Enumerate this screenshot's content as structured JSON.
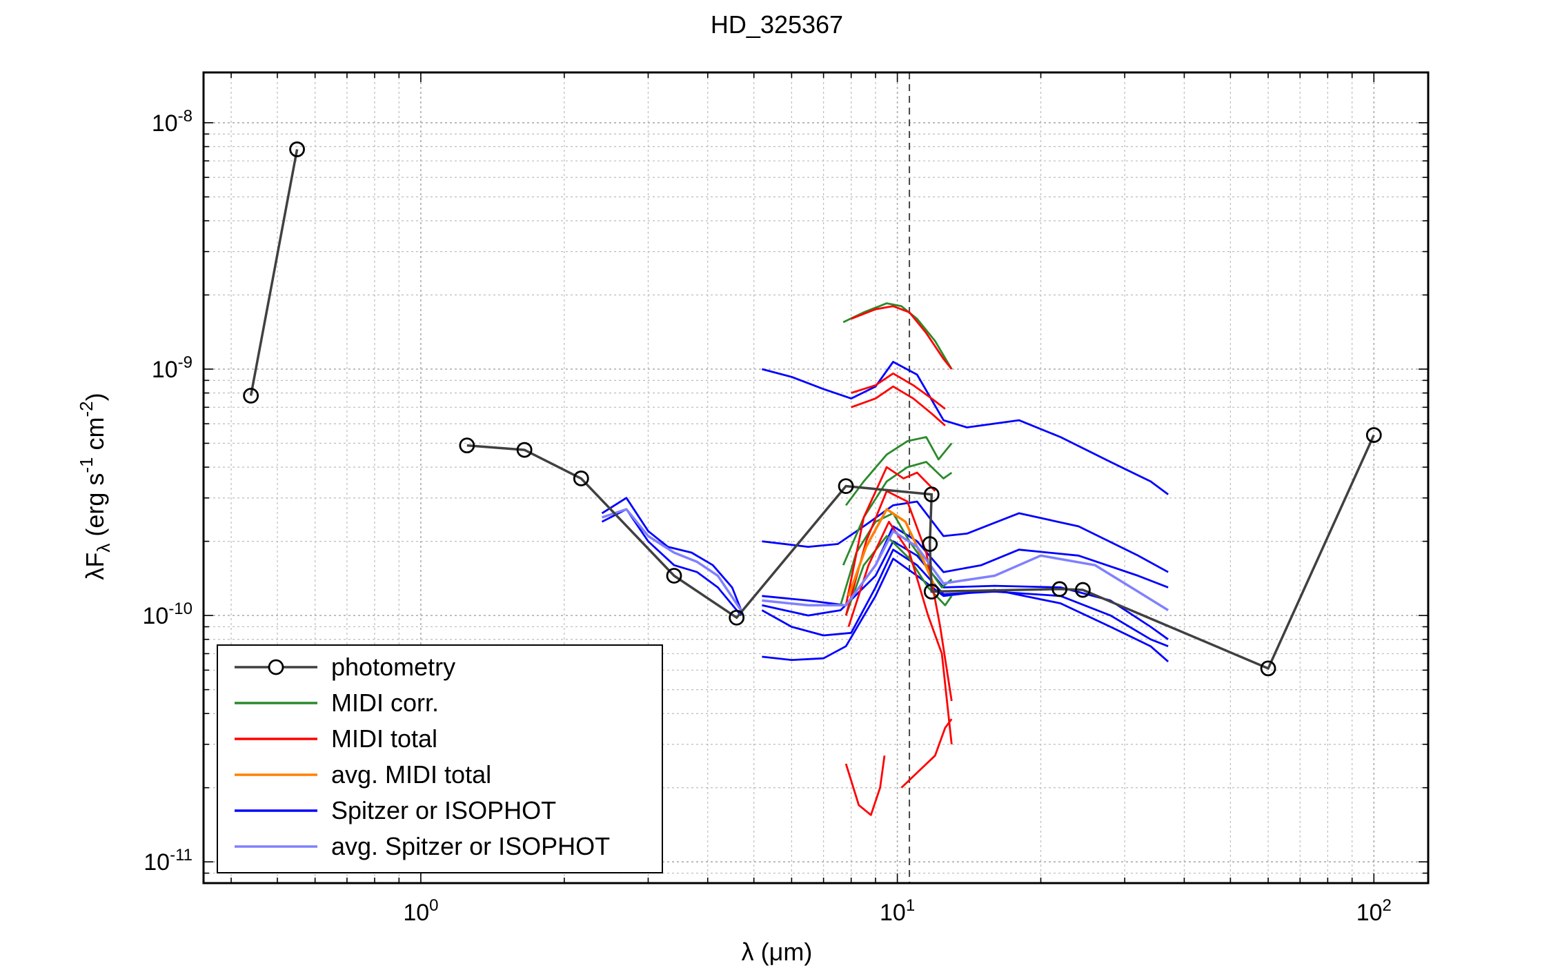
{
  "chart_data": {
    "type": "line",
    "title": "HD_325367",
    "xlabel": {
      "prefix": "λ (",
      "mu": "μ",
      "suffix": "m)"
    },
    "ylabel": {
      "lambda": "λ",
      "F": "F",
      "sub": "λ",
      "open": " (erg s",
      "exp1": "-1",
      "mid": " cm",
      "exp2": "-2",
      "close": ")"
    },
    "x_scale": "log",
    "y_scale": "log",
    "xlim": [
      0.35,
      130
    ],
    "ylim": [
      8.2e-12,
      1.6e-08
    ],
    "x_ticks": [
      {
        "value": 1,
        "base": "10",
        "exp": "0"
      },
      {
        "value": 10,
        "base": "10",
        "exp": "1"
      },
      {
        "value": 100,
        "base": "10",
        "exp": "2"
      }
    ],
    "y_ticks": [
      {
        "value": 1e-11,
        "base": "10",
        "exp": "-11"
      },
      {
        "value": 1e-10,
        "base": "10",
        "exp": "-10"
      },
      {
        "value": 1e-09,
        "base": "10",
        "exp": "-9"
      },
      {
        "value": 1e-08,
        "base": "10",
        "exp": "-8"
      }
    ],
    "grid": true,
    "vline_x": 10.6,
    "legend_position": "lower-left",
    "colors": {
      "photometry": "#404040",
      "midi_corr": "#2a8a2a",
      "midi_total": "#ff0000",
      "avg_midi_total": "#ff8000",
      "spitzer": "#0000ff",
      "avg_spitzer": "#8080ff"
    },
    "series": [
      {
        "name": "photometry",
        "kind": "photometry",
        "color": "#404040",
        "segments": [
          [
            [
              0.44,
              7.8e-10
            ],
            [
              0.55,
              7.8e-09
            ]
          ],
          [
            [
              1.25,
              4.9e-10
            ],
            [
              1.65,
              4.7e-10
            ],
            [
              2.17,
              3.6e-10
            ],
            [
              3.4,
              1.45e-10
            ],
            [
              4.6,
              9.8e-11
            ],
            [
              7.8,
              3.35e-10
            ],
            [
              11.8,
              3.1e-10
            ],
            [
              11.7,
              1.95e-10
            ],
            [
              11.8,
              1.25e-10
            ],
            [
              21.9,
              1.28e-10
            ],
            [
              24.5,
              1.27e-10
            ],
            [
              60,
              6.1e-11
            ],
            [
              100,
              5.4e-10
            ]
          ]
        ]
      },
      {
        "name": "MIDI corr.",
        "kind": "midi_corr",
        "color": "#2a8a2a",
        "lines": [
          [
            [
              7.7,
              1.55e-09
            ],
            [
              8.5,
              1.7e-09
            ],
            [
              9.5,
              1.85e-09
            ],
            [
              10.2,
              1.8e-09
            ],
            [
              11.0,
              1.6e-09
            ],
            [
              12.0,
              1.3e-09
            ],
            [
              13.0,
              1e-09
            ]
          ],
          [
            [
              7.8,
              2.8e-10
            ],
            [
              8.5,
              3.5e-10
            ],
            [
              9.5,
              4.5e-10
            ],
            [
              10.5,
              5.1e-10
            ],
            [
              11.5,
              5.3e-10
            ],
            [
              12.2,
              4.3e-10
            ],
            [
              13.0,
              5e-10
            ]
          ],
          [
            [
              7.7,
              1.6e-10
            ],
            [
              8.5,
              2.5e-10
            ],
            [
              9.5,
              3.5e-10
            ],
            [
              10.5,
              4e-10
            ],
            [
              11.5,
              4.2e-10
            ],
            [
              12.5,
              3.6e-10
            ],
            [
              13.0,
              3.8e-10
            ]
          ],
          [
            [
              7.6,
              1.1e-10
            ],
            [
              8.2,
              1.8e-10
            ],
            [
              9.0,
              2.4e-10
            ],
            [
              9.8,
              2.6e-10
            ],
            [
              10.6,
              2e-10
            ],
            [
              11.5,
              1.6e-10
            ],
            [
              12.4,
              1.3e-10
            ],
            [
              13.0,
              1.4e-10
            ]
          ],
          [
            [
              7.8,
              1e-10
            ],
            [
              8.5,
              1.6e-10
            ],
            [
              9.5,
              2.1e-10
            ],
            [
              10.6,
              1.7e-10
            ],
            [
              11.6,
              1.3e-10
            ],
            [
              12.6,
              1.1e-10
            ],
            [
              13.0,
              1.2e-10
            ]
          ]
        ]
      },
      {
        "name": "MIDI total",
        "kind": "midi_total",
        "color": "#ff0000",
        "lines": [
          [
            [
              8.0,
              1.6e-09
            ],
            [
              9.0,
              1.75e-09
            ],
            [
              9.8,
              1.8e-09
            ],
            [
              10.6,
              1.7e-09
            ],
            [
              11.5,
              1.4e-09
            ],
            [
              12.5,
              1.1e-09
            ],
            [
              13.0,
              1e-09
            ]
          ],
          [
            [
              8.0,
              8e-10
            ],
            [
              9.0,
              8.6e-10
            ],
            [
              9.8,
              9.6e-10
            ],
            [
              10.8,
              8.6e-10
            ],
            [
              11.8,
              7.6e-10
            ],
            [
              12.6,
              6.9e-10
            ]
          ],
          [
            [
              8.0,
              7e-10
            ],
            [
              9.0,
              7.6e-10
            ],
            [
              9.8,
              8.5e-10
            ],
            [
              10.8,
              7.6e-10
            ],
            [
              11.8,
              6.6e-10
            ],
            [
              12.6,
              5.9e-10
            ]
          ],
          [
            [
              7.8,
              1.1e-10
            ],
            [
              8.5,
              2.5e-10
            ],
            [
              9.5,
              4e-10
            ],
            [
              10.3,
              3.6e-10
            ],
            [
              11.0,
              3.8e-10
            ],
            [
              12.0,
              3.2e-10
            ]
          ],
          [
            [
              7.8,
              1e-10
            ],
            [
              8.6,
              2e-10
            ],
            [
              9.5,
              3.2e-10
            ],
            [
              10.5,
              2.9e-10
            ],
            [
              11.5,
              1.8e-10
            ],
            [
              12.3,
              9e-11
            ],
            [
              13.0,
              4.5e-11
            ]
          ],
          [
            [
              7.9,
              9e-11
            ],
            [
              8.7,
              1.6e-10
            ],
            [
              9.6,
              2.4e-10
            ],
            [
              10.6,
              1.8e-10
            ],
            [
              11.6,
              1e-10
            ],
            [
              12.4,
              7e-11
            ],
            [
              13.0,
              3e-11
            ]
          ],
          [
            [
              7.8,
              2.5e-11
            ],
            [
              8.3,
              1.7e-11
            ],
            [
              8.8,
              1.55e-11
            ],
            [
              9.2,
              2e-11
            ],
            [
              9.4,
              2.7e-11
            ]
          ],
          [
            [
              10.2,
              2e-11
            ],
            [
              11.0,
              2.3e-11
            ],
            [
              12.0,
              2.7e-11
            ],
            [
              12.6,
              3.5e-11
            ],
            [
              13.0,
              3.8e-11
            ]
          ]
        ]
      },
      {
        "name": "avg. MIDI total",
        "kind": "avg_midi_total",
        "color": "#ff8000",
        "lines": [
          [
            [
              7.9,
              1.2e-10
            ],
            [
              8.6,
              1.9e-10
            ],
            [
              9.5,
              2.7e-10
            ],
            [
              10.4,
              2.4e-10
            ],
            [
              11.3,
              1.7e-10
            ],
            [
              12.0,
              1.3e-10
            ]
          ]
        ]
      },
      {
        "name": "Spitzer or ISOPHOT",
        "kind": "spitzer",
        "color": "#0000ff",
        "lines": [
          [
            [
              2.4,
              2.6e-10
            ],
            [
              2.7,
              3e-10
            ],
            [
              3.0,
              2.2e-10
            ],
            [
              3.3,
              1.9e-10
            ],
            [
              3.7,
              1.8e-10
            ],
            [
              4.1,
              1.6e-10
            ],
            [
              4.5,
              1.3e-10
            ],
            [
              4.75,
              1e-10
            ]
          ],
          [
            [
              2.4,
              2.4e-10
            ],
            [
              2.7,
              2.7e-10
            ],
            [
              3.0,
              2e-10
            ],
            [
              3.4,
              1.6e-10
            ],
            [
              3.8,
              1.5e-10
            ],
            [
              4.2,
              1.3e-10
            ],
            [
              4.7,
              1e-10
            ]
          ],
          [
            [
              5.2,
              1e-09
            ],
            [
              6.0,
              9.3e-10
            ],
            [
              7.0,
              8.3e-10
            ],
            [
              8.0,
              7.6e-10
            ],
            [
              9.0,
              8.5e-10
            ],
            [
              9.8,
              1.07e-09
            ],
            [
              11.0,
              9.5e-10
            ],
            [
              12.5,
              6.2e-10
            ],
            [
              14.0,
              5.8e-10
            ],
            [
              18.0,
              6.2e-10
            ],
            [
              22.0,
              5.3e-10
            ],
            [
              28.0,
              4.2e-10
            ],
            [
              34.0,
              3.5e-10
            ],
            [
              37.0,
              3.1e-10
            ]
          ],
          [
            [
              5.2,
              2e-10
            ],
            [
              6.5,
              1.9e-10
            ],
            [
              7.5,
              1.95e-10
            ],
            [
              8.5,
              2.3e-10
            ],
            [
              9.8,
              2.8e-10
            ],
            [
              11.0,
              2.9e-10
            ],
            [
              12.5,
              2.1e-10
            ],
            [
              14.0,
              2.15e-10
            ],
            [
              18.0,
              2.6e-10
            ],
            [
              24.0,
              2.3e-10
            ],
            [
              32.0,
              1.75e-10
            ],
            [
              37.0,
              1.5e-10
            ]
          ],
          [
            [
              5.2,
              1.2e-10
            ],
            [
              6.5,
              1.15e-10
            ],
            [
              7.8,
              1.1e-10
            ],
            [
              9.0,
              1.6e-10
            ],
            [
              9.8,
              2.3e-10
            ],
            [
              11.0,
              2e-10
            ],
            [
              12.5,
              1.5e-10
            ],
            [
              15.0,
              1.6e-10
            ],
            [
              18.0,
              1.85e-10
            ],
            [
              24.0,
              1.75e-10
            ],
            [
              32.0,
              1.45e-10
            ],
            [
              37.0,
              1.3e-10
            ]
          ],
          [
            [
              5.2,
              1.1e-10
            ],
            [
              6.5,
              1e-10
            ],
            [
              7.6,
              1.05e-10
            ],
            [
              9.0,
              1.45e-10
            ],
            [
              9.8,
              2e-10
            ],
            [
              11.0,
              1.75e-10
            ],
            [
              12.5,
              1.3e-10
            ],
            [
              16.0,
              1.32e-10
            ],
            [
              22.0,
              1.3e-10
            ],
            [
              28.0,
              1.15e-10
            ],
            [
              34.0,
              9e-11
            ],
            [
              37.0,
              8e-11
            ]
          ],
          [
            [
              5.2,
              1.05e-10
            ],
            [
              6.0,
              9e-11
            ],
            [
              7.0,
              8.3e-11
            ],
            [
              8.0,
              8.5e-11
            ],
            [
              9.0,
              1.3e-10
            ],
            [
              9.8,
              1.85e-10
            ],
            [
              11.0,
              1.6e-10
            ],
            [
              12.5,
              1.22e-10
            ],
            [
              16.0,
              1.25e-10
            ],
            [
              22.0,
              1.2e-10
            ],
            [
              28.0,
              1e-10
            ],
            [
              34.0,
              8e-11
            ],
            [
              37.0,
              7.5e-11
            ]
          ],
          [
            [
              5.2,
              6.8e-11
            ],
            [
              6.0,
              6.6e-11
            ],
            [
              7.0,
              6.7e-11
            ],
            [
              7.8,
              7.5e-11
            ],
            [
              9.0,
              1.2e-10
            ],
            [
              9.8,
              1.7e-10
            ],
            [
              11.0,
              1.45e-10
            ],
            [
              12.5,
              1.2e-10
            ],
            [
              16.0,
              1.27e-10
            ],
            [
              22.0,
              1.12e-10
            ],
            [
              28.0,
              9e-11
            ],
            [
              34.0,
              7.5e-11
            ],
            [
              37.0,
              6.5e-11
            ]
          ]
        ]
      },
      {
        "name": "avg. Spitzer or ISOPHOT",
        "kind": "avg_spitzer",
        "color": "#8080ff",
        "lines": [
          [
            [
              2.4,
              2.5e-10
            ],
            [
              2.7,
              2.7e-10
            ],
            [
              3.0,
              2.1e-10
            ],
            [
              3.4,
              1.8e-10
            ],
            [
              3.8,
              1.65e-10
            ],
            [
              4.2,
              1.45e-10
            ],
            [
              4.7,
              1.05e-10
            ]
          ],
          [
            [
              5.2,
              1.15e-10
            ],
            [
              6.5,
              1.1e-10
            ],
            [
              7.8,
              1.1e-10
            ],
            [
              9.0,
              1.6e-10
            ],
            [
              9.8,
              2.2e-10
            ],
            [
              11.0,
              1.9e-10
            ],
            [
              12.5,
              1.35e-10
            ],
            [
              16.0,
              1.45e-10
            ],
            [
              20.0,
              1.75e-10
            ],
            [
              26.0,
              1.6e-10
            ],
            [
              32.0,
              1.25e-10
            ],
            [
              37.0,
              1.05e-10
            ]
          ]
        ]
      }
    ],
    "legend": [
      {
        "label": "photometry",
        "kind": "photometry",
        "color": "#404040"
      },
      {
        "label": "MIDI corr.",
        "kind": "midi_corr",
        "color": "#2a8a2a"
      },
      {
        "label": "MIDI total",
        "kind": "midi_total",
        "color": "#ff0000"
      },
      {
        "label": "avg. MIDI total",
        "kind": "avg_midi_total",
        "color": "#ff8000"
      },
      {
        "label": "Spitzer or ISOPHOT",
        "kind": "spitzer",
        "color": "#0000ff"
      },
      {
        "label": "avg. Spitzer or ISOPHOT",
        "kind": "avg_spitzer",
        "color": "#8080ff"
      }
    ]
  }
}
